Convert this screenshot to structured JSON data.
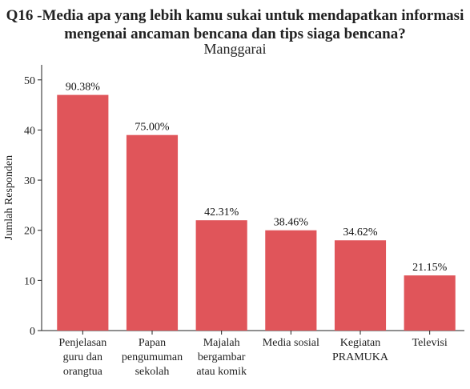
{
  "chart_data": {
    "type": "bar",
    "title_lines": [
      "Q16 -Media apa yang lebih kamu sukai untuk mendapatkan informasi",
      "mengenai ancaman bencana dan tips siaga bencana?"
    ],
    "subtitle": "Manggarai",
    "ylabel": "Jumlah Responden",
    "ylim": [
      0,
      53
    ],
    "yticks": [
      0,
      10,
      20,
      30,
      40,
      50
    ],
    "categories": [
      [
        "Penjelasan",
        "guru dan",
        "orangtua"
      ],
      [
        "Papan",
        "pengumuman",
        "sekolah"
      ],
      [
        "Majalah",
        "bergambar",
        "atau komik"
      ],
      [
        "Media sosial"
      ],
      [
        "Kegiatan",
        "PRAMUKA"
      ],
      [
        "Televisi"
      ]
    ],
    "values": [
      47,
      39,
      22,
      20,
      18,
      11
    ],
    "data_labels": [
      "90.38%",
      "75.00%",
      "42.31%",
      "38.46%",
      "34.62%",
      "21.15%"
    ],
    "bar_color": "#e0555a",
    "grid": false,
    "legend": "none"
  }
}
